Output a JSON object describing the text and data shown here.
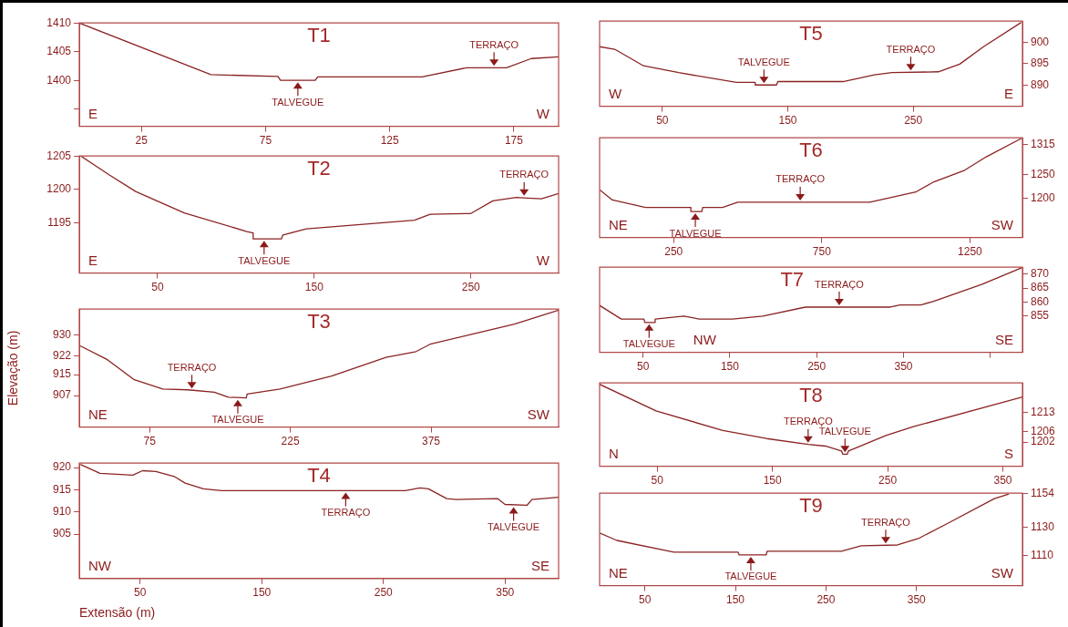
{
  "chart_data": [
    {
      "type": "line",
      "title": "T1",
      "xlim": [
        0,
        193
      ],
      "xticks": [
        25,
        75,
        125,
        175
      ],
      "ylim": [
        1392,
        1410
      ],
      "yticks": [
        1410,
        1405,
        1400,
        {
          "value": 1395,
          "label": null
        }
      ],
      "series": [
        {
          "color": "#8b2323",
          "x": [
            0,
            53,
            80,
            81,
            95,
            96,
            138,
            156,
            172,
            182,
            193
          ],
          "values": [
            1410,
            1401,
            1400.7,
            1400,
            1400,
            1400.6,
            1400.6,
            1402.2,
            1402.2,
            1403.8,
            1404.1
          ]
        }
      ],
      "annotations": [
        {
          "text": "TERRAÇO",
          "x": 167,
          "y": 1402.2
        },
        {
          "text": "TALVEGUE",
          "x": 88,
          "y": 1400
        },
        "E",
        "W"
      ]
    },
    {
      "type": "line",
      "title": "T2",
      "xlim": [
        0,
        306
      ],
      "xticks": [
        50,
        150,
        250
      ],
      "ylim": [
        1187.5,
        1205
      ],
      "yticks": [
        1205,
        1200,
        1195
      ],
      "series": [
        {
          "color": "#8b2323",
          "x": [
            1,
            19,
            36,
            67,
            107,
            111,
            111,
            129,
            130,
            145,
            214,
            224,
            250,
            264,
            279,
            286,
            295,
            306
          ],
          "values": [
            1205,
            1202.2,
            1199.7,
            1196.5,
            1193.7,
            1193.5,
            1192.6,
            1192.6,
            1193.2,
            1194.1,
            1195.4,
            1196.3,
            1196.4,
            1198.3,
            1198.8,
            1198.7,
            1198.6,
            1199.4
          ]
        }
      ],
      "annotations": [
        {
          "text": "TERRAÇO",
          "x": 284,
          "y": 1198.8
        },
        {
          "text": "TALVEGUE",
          "x": 118,
          "y": 1192.6
        },
        "E",
        "W"
      ]
    },
    {
      "type": "line",
      "title": "T3",
      "ylabel": "Elevação (m)",
      "xlim": [
        0,
        511
      ],
      "xticks": [
        75,
        225,
        375
      ],
      "ylim": [
        895,
        940
      ],
      "yticks": [
        930,
        922,
        915,
        907
      ],
      "series": [
        {
          "color": "#8b2323",
          "x": [
            1,
            30,
            58,
            89,
            116,
            144,
            159,
            178,
            179,
            214,
            269,
            327,
            359,
            374,
            417,
            464,
            511
          ],
          "values": [
            926,
            920.7,
            913.2,
            909.5,
            909.2,
            908.3,
            906.4,
            906.1,
            907.6,
            909.5,
            914.5,
            921.6,
            923.8,
            926.6,
            930.3,
            934.3,
            939.6
          ]
        }
      ],
      "annotations": [
        {
          "text": "TERRAÇO",
          "x": 120,
          "y": 909
        },
        {
          "text": "TALVEGUE",
          "x": 169,
          "y": 906.1
        },
        "NE",
        "SW"
      ]
    },
    {
      "type": "line",
      "title": "T4",
      "xlabel": "Extensão (m)",
      "xlim": [
        0,
        394
      ],
      "xticks": [
        50,
        150,
        250,
        350
      ],
      "ylim": [
        895,
        921
      ],
      "yticks": [
        920,
        915,
        910,
        905
      ],
      "series": [
        {
          "color": "#8b2323",
          "x": [
            1,
            17,
            44,
            52,
            63,
            78,
            87,
            102,
            117,
            268,
            280,
            287,
            302,
            310,
            344,
            350,
            368,
            372,
            394
          ],
          "values": [
            920.7,
            918.7,
            918.3,
            919.3,
            919.1,
            918,
            916.5,
            915.2,
            914.8,
            914.8,
            915.4,
            915.2,
            913,
            912.8,
            913,
            911.7,
            911.5,
            912.8,
            913.3
          ]
        }
      ],
      "annotations": [
        {
          "text": "TERRAÇO",
          "x": 219,
          "y": 914.8
        },
        {
          "text": "TALVEGUE",
          "x": 357,
          "y": 911.5
        },
        "NW",
        "SE"
      ]
    },
    {
      "type": "line",
      "title": "T5",
      "xlim": [
        0,
        337
      ],
      "xticks": [
        50,
        150,
        250
      ],
      "ylim": [
        885,
        905
      ],
      "yticks": [
        900,
        895,
        890
      ],
      "series": [
        {
          "color": "#8b2323",
          "x": [
            0,
            12,
            35,
            63,
            109,
            124,
            124,
            141,
            142,
            194,
            219,
            233,
            270,
            287,
            306,
            336
          ],
          "values": [
            899,
            898.4,
            894.5,
            892.9,
            890.6,
            890.6,
            890,
            890,
            890.8,
            890.8,
            892.4,
            892.9,
            893.1,
            894.9,
            899,
            904.7
          ]
        }
      ],
      "annotations": [
        {
          "text": "TALVEGUE",
          "x": 131,
          "y": 890
        },
        {
          "text": "TERRAÇO",
          "x": 248,
          "y": 893
        },
        "W",
        "E"
      ]
    },
    {
      "type": "line",
      "title": "T6",
      "xlim": [
        0,
        1427
      ],
      "xticks": [
        250,
        750,
        1250
      ],
      "ylim": [
        1115,
        1330
      ],
      "yticks": [
        1315,
        1250,
        1200
      ],
      "series": [
        {
          "color": "#8b2323",
          "x": [
            0,
            43,
            155,
            308,
            308,
            345,
            348,
            415,
            466,
            912,
            1067,
            1128,
            1232,
            1305,
            1424
          ],
          "values": [
            1218,
            1196,
            1180,
            1180,
            1171,
            1171,
            1180,
            1180,
            1191,
            1191,
            1213,
            1235,
            1260,
            1289,
            1329
          ]
        }
      ],
      "annotations": [
        {
          "text": "TALVEGUE",
          "x": 323,
          "y": 1171
        },
        {
          "text": "TERRAÇO",
          "x": 677,
          "y": 1191
        },
        "NE",
        "SW"
      ]
    },
    {
      "type": "line",
      "title": "T7",
      "xlim": [
        0,
        487
      ],
      "xticks": [
        50,
        150,
        250,
        350,
        {
          "value": 450,
          "label": null
        }
      ],
      "ylim": [
        842,
        872.5
      ],
      "yticks": [
        870,
        865,
        860,
        855
      ],
      "series": [
        {
          "color": "#8b2323",
          "x": [
            0,
            25,
            51,
            52,
            63,
            64,
            97,
            115,
            153,
            188,
            237,
            335,
            346,
            370,
            384,
            440,
            486
          ],
          "values": [
            858.8,
            853.9,
            853.9,
            852.7,
            852.7,
            853.9,
            855,
            853.9,
            853.9,
            855,
            858.2,
            858.2,
            859,
            859,
            860.2,
            866.3,
            872.3
          ]
        }
      ],
      "annotations": [
        {
          "text": "TERRAÇO",
          "x": 276,
          "y": 858.2
        },
        {
          "text": "TALVEGUE",
          "x": 57,
          "y": 852.7
        },
        "NW",
        "SE"
      ]
    },
    {
      "type": "line",
      "title": "T8",
      "xlim": [
        0,
        367
      ],
      "xticks": [
        50,
        150,
        250,
        350
      ],
      "ylim": [
        1193,
        1224
      ],
      "yticks": [
        1213,
        1206,
        1202
      ],
      "series": [
        {
          "color": "#8b2323",
          "x": [
            0,
            49,
            107,
            145,
            181,
            196,
            210,
            211,
            215,
            216,
            249,
            273,
            367
          ],
          "values": [
            1223.5,
            1213.6,
            1206.3,
            1203.3,
            1201.1,
            1200.5,
            1198.7,
            1197.5,
            1197.5,
            1198.7,
            1204.5,
            1207.8,
            1218.8
          ]
        }
      ],
      "annotations": [
        {
          "text": "TERRAÇO",
          "x": 181,
          "y": 1201.1
        },
        {
          "text": "TALVEGUE",
          "x": 213,
          "y": 1197.5
        },
        "N",
        "S"
      ]
    },
    {
      "type": "line",
      "title": "T9",
      "xlim": [
        0,
        467
      ],
      "xticks": [
        50,
        150,
        250,
        350
      ],
      "ylim": [
        1089,
        1154
      ],
      "yticks": [
        1154,
        1130,
        1110
      ],
      "series": [
        {
          "color": "#8b2323",
          "x": [
            0,
            19,
            82,
            153,
            154,
            184,
            185,
            267,
            289,
            329,
            352,
            385,
            436,
            452
          ],
          "values": [
            1126,
            1120.8,
            1112.5,
            1112.5,
            1110.6,
            1110.6,
            1113.2,
            1113.2,
            1117,
            1117.6,
            1122.1,
            1133,
            1150.2,
            1153.4
          ]
        }
      ],
      "annotations": [
        {
          "text": "TERRAÇO",
          "x": 316,
          "y": 1117.5
        },
        {
          "text": "TALVEGUE",
          "x": 167,
          "y": 1110.6
        },
        "NE",
        "SW"
      ]
    }
  ]
}
